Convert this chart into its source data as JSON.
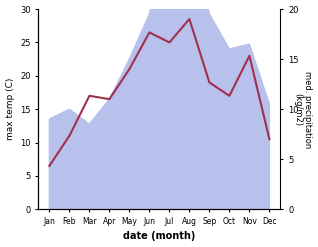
{
  "months": [
    "Jan",
    "Feb",
    "Mar",
    "Apr",
    "May",
    "Jun",
    "Jul",
    "Aug",
    "Sep",
    "Oct",
    "Nov",
    "Dec"
  ],
  "temp_C": [
    6.5,
    11.0,
    17.0,
    16.5,
    21.0,
    26.5,
    25.0,
    28.5,
    19.0,
    17.0,
    23.0,
    10.5
  ],
  "precip_kg": [
    9.0,
    10.0,
    8.5,
    11.0,
    15.0,
    19.5,
    27.0,
    27.5,
    19.5,
    16.0,
    16.5,
    10.5
  ],
  "temp_color": "#a03050",
  "precip_color": "#b8c0ec",
  "ylabel_left": "max temp (C)",
  "ylabel_right": "med. precipitation\n(kg/m2)",
  "xlabel": "date (month)",
  "ylim_left": [
    0,
    30
  ],
  "ylim_right": [
    0,
    20
  ],
  "xtick_labels": [
    "Jan",
    "Feb",
    "Mar",
    "Apr",
    "May",
    "Jun",
    "Jul",
    "Aug",
    "Sep",
    "Oct",
    "Nov",
    "Dec"
  ],
  "yticks_left": [
    0,
    5,
    10,
    15,
    20,
    25,
    30
  ],
  "yticks_right": [
    0,
    5,
    10,
    15,
    20
  ],
  "bg_color": "#ffffff"
}
